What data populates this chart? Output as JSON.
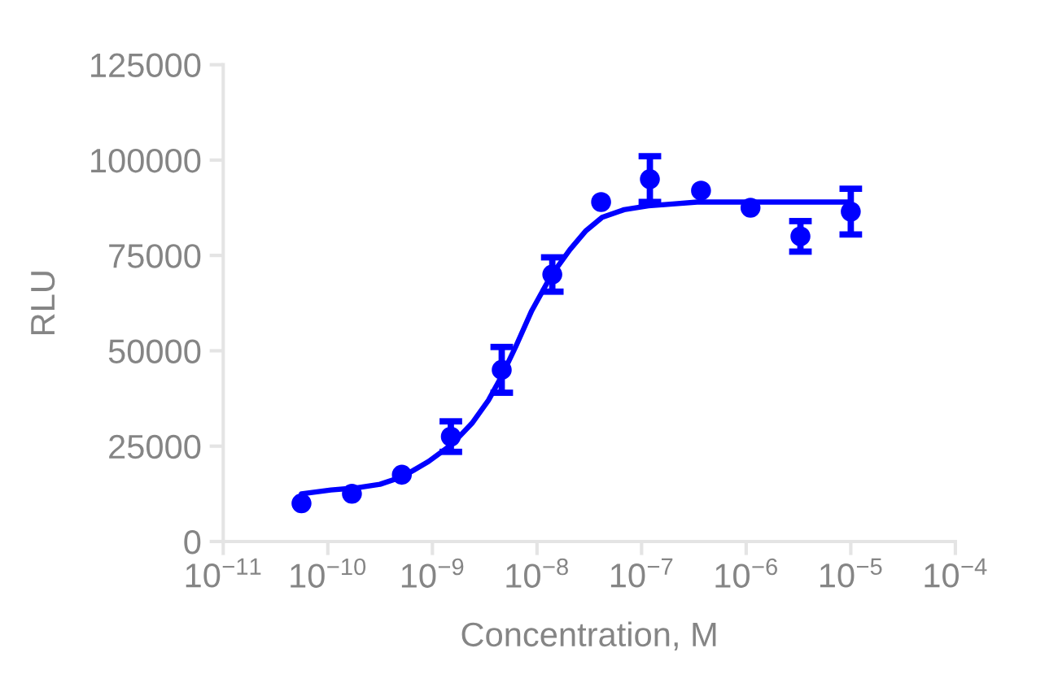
{
  "chart_data": {
    "type": "scatter",
    "xlabel": "Concentration, M",
    "ylabel": "RLU",
    "log": "x",
    "xlim": [
      1e-11,
      0.0001
    ],
    "xticks": [
      {
        "value": 1e-11,
        "label": "10$^{−11}$"
      },
      {
        "value": 1e-10,
        "label": "10$^{−10}$"
      },
      {
        "value": 1e-09,
        "label": "10$^{−9}$"
      },
      {
        "value": 1e-08,
        "label": "10$^{−8}$"
      },
      {
        "value": 1e-07,
        "label": "10$^{−7}$"
      },
      {
        "value": 1e-06,
        "label": "10$^{−6}$"
      },
      {
        "value": 1e-05,
        "label": "10$^{−5}$"
      },
      {
        "value": 0.0001,
        "label": "10$^{−4}$"
      }
    ],
    "ylim": [
      0,
      125000
    ],
    "yticks": [
      0,
      25000,
      50000,
      75000,
      100000,
      125000
    ],
    "series": [
      {
        "type": "line",
        "color": "#0000ff",
        "line_style": "solid",
        "x": [
          5.6e-11,
          1.07e-10,
          1.8e-10,
          3.15e-10,
          5.2e-10,
          9.2e-10,
          1.54e-09,
          2.39e-09,
          3.43e-09,
          4.52e-09,
          6.24e-09,
          8.9e-09,
          1.35e-08,
          2.06e-08,
          2.94e-08,
          4.2e-08,
          6.8e-08,
          1.16e-07,
          1.98e-07,
          3.4e-07,
          9.9e-07,
          2.98e-06,
          1e-05
        ],
        "values": [
          12500,
          13500,
          14000,
          15000,
          17000,
          21000,
          25500,
          31000,
          37000,
          43000,
          51000,
          60500,
          69500,
          76500,
          81500,
          85000,
          87000,
          88000,
          88500,
          89000,
          89000,
          89000,
          89000
        ]
      },
      {
        "color": "#0000ff",
        "marker": "circle",
        "x": [
          5.6e-11,
          1.7e-10,
          5.1e-10,
          1.5e-09,
          4.6e-09,
          1.4e-08,
          4.1e-08,
          1.2e-07,
          3.7e-07,
          1.1e-06,
          3.3e-06,
          1e-05
        ],
        "values": [
          10000,
          12500,
          17500,
          27500,
          45000,
          70000,
          89000,
          95000,
          92000,
          87500,
          80000,
          86500
        ],
        "errors": [
          null,
          null,
          null,
          4000,
          6000,
          4500,
          null,
          6000,
          null,
          null,
          4000,
          6000
        ]
      }
    ]
  }
}
